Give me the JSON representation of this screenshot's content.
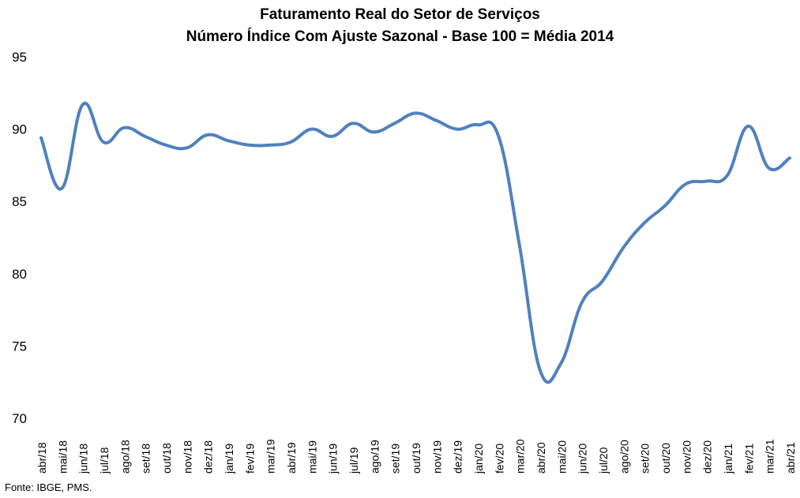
{
  "chart_data": {
    "type": "line",
    "title": "Faturamento Real do Setor de Serviços",
    "subtitle": "Número Índice Com Ajuste Sazonal - Base 100 = Média 2014",
    "xlabel": "",
    "ylabel": "",
    "ylim": [
      70,
      95
    ],
    "yticks": [
      70,
      75,
      80,
      85,
      90,
      95
    ],
    "grid": false,
    "legend": "none",
    "categories": [
      "abr/18",
      "mai/18",
      "jun/18",
      "jul/18",
      "ago/18",
      "set/18",
      "out/18",
      "nov/18",
      "dez/18",
      "jan/19",
      "fev/19",
      "mar/19",
      "abr/19",
      "mai/19",
      "jun/19",
      "jul/19",
      "ago/19",
      "set/19",
      "out/19",
      "nov/19",
      "dez/19",
      "jan/20",
      "fev/20",
      "mar/20",
      "abr/20",
      "mai/20",
      "jun/20",
      "jul/20",
      "ago/20",
      "set/20",
      "out/20",
      "nov/20",
      "dez/20",
      "jan/21",
      "fev/21",
      "mar/21",
      "abr/21"
    ],
    "series": [
      {
        "color": "#4F81BD",
        "values": [
          89.4,
          85.9,
          91.7,
          89.1,
          90.1,
          89.5,
          88.9,
          88.7,
          89.6,
          89.2,
          88.9,
          88.9,
          89.1,
          90.0,
          89.5,
          90.4,
          89.8,
          90.4,
          91.1,
          90.6,
          90.0,
          90.3,
          89.5,
          82.0,
          73.3,
          73.8,
          78.0,
          79.5,
          81.8,
          83.5,
          84.7,
          86.2,
          86.4,
          86.8,
          90.2,
          87.3,
          88.0
        ]
      }
    ]
  },
  "footer": {
    "source": "Fonte: IBGE, PMS."
  }
}
